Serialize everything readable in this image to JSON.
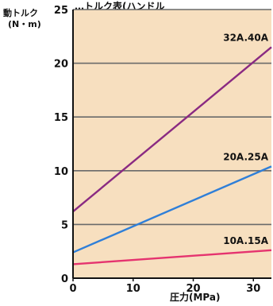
{
  "chart_data": {
    "type": "line",
    "title": "…トルク表(ハンドル",
    "ylabel_line1": "動トルク",
    "ylabel_line2": "(N・m)",
    "xlabel": "圧力(MPa)",
    "xlim": [
      0,
      33
    ],
    "ylim": [
      0,
      25
    ],
    "xticks": [
      0,
      10,
      20,
      30
    ],
    "yticks": [
      0,
      5,
      10,
      15,
      20,
      25
    ],
    "grid": true,
    "plot_bg": "#f7dfbf",
    "grid_color": "#6a6a6a",
    "series": [
      {
        "name": "32A.40A",
        "color": "#8a2a82",
        "x": [
          0,
          33
        ],
        "y": [
          6.2,
          21.5
        ]
      },
      {
        "name": "20A.25A",
        "color": "#2f7fd8",
        "x": [
          0,
          33
        ],
        "y": [
          2.4,
          10.4
        ]
      },
      {
        "name": "10A.15A",
        "color": "#e5336f",
        "x": [
          0,
          33
        ],
        "y": [
          1.3,
          2.6
        ]
      }
    ]
  }
}
